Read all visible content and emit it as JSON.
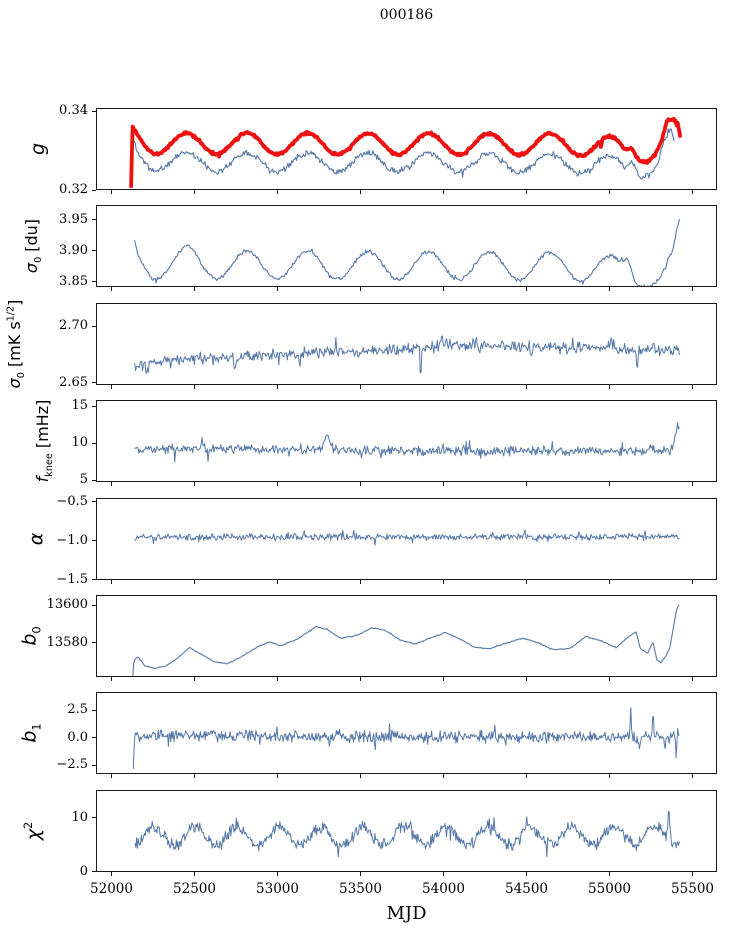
{
  "title": "000186",
  "chart_data": {
    "type": "line",
    "title": "000186",
    "xlabel": "MJD",
    "x_ticks": [
      52000,
      52500,
      53000,
      53500,
      54000,
      54500,
      55000,
      55500
    ],
    "x_tick_labels": [
      "52000",
      "52500",
      "53000",
      "53500",
      "54000",
      "54500",
      "55000",
      "55500"
    ],
    "x_data_range": [
      52120,
      55425
    ],
    "grid": false,
    "legend": "none",
    "colors": {
      "line_blue": "#5578a8",
      "line_red": "#ee1111",
      "axis": "#1a1a1a",
      "background": "#ffffff"
    },
    "panels": [
      {
        "id": "g",
        "label_var": "g",
        "label_unit": "",
        "ylim": [
          0.32,
          0.3408
        ],
        "ytick_vals": [
          0.32,
          0.34
        ],
        "ytick_labels": [
          "0.32",
          "0.34"
        ],
        "series": [
          {
            "id": "g-data-blue",
            "color": "#5578a8",
            "width": 1.1,
            "n": 560,
            "noise": 0.0009,
            "seed": 11,
            "osc": {
              "period": 365,
              "amp": 0.0024,
              "phase": 52359
            },
            "anchors": [
              [
                52138,
                0.3308
              ],
              [
                52152,
                0.329
              ],
              [
                52240,
                0.3272
              ],
              [
                52420,
                0.3272
              ],
              [
                54700,
                0.3268
              ],
              [
                55040,
                0.3262
              ],
              [
                55090,
                0.3255
              ],
              [
                55135,
                0.3288
              ],
              [
                55180,
                0.3258
              ],
              [
                55235,
                0.3252
              ],
              [
                55280,
                0.3258
              ],
              [
                55320,
                0.3295
              ],
              [
                55350,
                0.3318
              ],
              [
                55370,
                0.3328
              ],
              [
                55388,
                0.331
              ]
            ]
          },
          {
            "id": "g-fit-red",
            "color": "#ee1111",
            "width": 3.8,
            "n": 700,
            "noise": 0.00038,
            "seed": 5,
            "osc": {
              "period": 365,
              "amp": 0.0027,
              "phase": 52359
            },
            "spikes": [
              [
                54950,
                -0.0025,
                7
              ]
            ],
            "anchors": [
              [
                52118,
                0.3185
              ],
              [
                52126,
                0.334
              ],
              [
                52170,
                0.3328
              ],
              [
                52260,
                0.3318
              ],
              [
                52420,
                0.3318
              ],
              [
                54760,
                0.3316
              ],
              [
                55040,
                0.3308
              ],
              [
                55090,
                0.33
              ],
              [
                55135,
                0.3322
              ],
              [
                55180,
                0.33
              ],
              [
                55230,
                0.3292
              ],
              [
                55275,
                0.3292
              ],
              [
                55315,
                0.331
              ],
              [
                55345,
                0.335
              ],
              [
                55395,
                0.3352
              ],
              [
                55405,
                0.334
              ],
              [
                55412,
                0.335
              ],
              [
                55425,
                0.332
              ]
            ]
          }
        ]
      },
      {
        "id": "sigma0_du",
        "label_var": "σ_{0}",
        "label_unit": "[du]",
        "ylim": [
          3.8405,
          3.9735
        ],
        "ytick_vals": [
          3.85,
          3.9,
          3.95
        ],
        "ytick_labels": [
          "3.85",
          "3.90",
          "3.95"
        ],
        "series": [
          {
            "id": "sigma0-du",
            "color": "#5578a8",
            "width": 1.1,
            "n": 560,
            "noise": 0.0036,
            "seed": 21,
            "osc": {
              "period": 365,
              "amp": 0.0225,
              "phase": 52359
            },
            "spikes": [
              [
                52470,
                0.01,
                100
              ]
            ],
            "anchors": [
              [
                52140,
                3.903
              ],
              [
                52158,
                3.886
              ],
              [
                52240,
                3.876
              ],
              [
                52420,
                3.877
              ],
              [
                54760,
                3.874
              ],
              [
                55060,
                3.868
              ],
              [
                55110,
                3.892
              ],
              [
                55155,
                3.868
              ],
              [
                55205,
                3.861
              ],
              [
                55255,
                3.852
              ],
              [
                55300,
                3.846
              ],
              [
                55340,
                3.856
              ],
              [
                55380,
                3.878
              ],
              [
                55408,
                3.92
              ],
              [
                55420,
                3.932
              ]
            ]
          }
        ]
      },
      {
        "id": "sigma0_mks",
        "label_var": "σ_{0}",
        "label_unit": "[mK s^{1/2}]",
        "ylim": [
          2.648,
          2.721
        ],
        "ytick_vals": [
          2.65,
          2.7
        ],
        "ytick_labels": [
          "2.65",
          "2.70"
        ],
        "series": [
          {
            "id": "sigma0-mks",
            "color": "#5578a8",
            "width": 1.0,
            "n": 640,
            "noise": 0.0062,
            "seed": 31,
            "spikes": [
              [
                52215,
                -0.009,
                18
              ],
              [
                52745,
                -0.013,
                14
              ],
              [
                53135,
                -0.012,
                14
              ],
              [
                53485,
                -0.009,
                12
              ],
              [
                53862,
                -0.03,
                9
              ],
              [
                54215,
                -0.008,
                10
              ],
              [
                54530,
                -0.01,
                11
              ],
              [
                55165,
                -0.024,
                11
              ],
              [
                55010,
                0.009,
                22
              ],
              [
                53990,
                0.01,
                18
              ]
            ],
            "anchors": [
              [
                52140,
                2.664
              ],
              [
                52350,
                2.671
              ],
              [
                52800,
                2.6735
              ],
              [
                53300,
                2.677
              ],
              [
                53800,
                2.6795
              ],
              [
                54060,
                2.684
              ],
              [
                54420,
                2.682
              ],
              [
                54800,
                2.681
              ],
              [
                55120,
                2.68
              ],
              [
                55420,
                2.679
              ]
            ]
          }
        ]
      },
      {
        "id": "f_knee",
        "label_var": "f_{knee}",
        "label_unit": "[mHz]",
        "ylim": [
          4.73,
          15.8
        ],
        "ytick_vals": [
          5,
          10,
          15
        ],
        "ytick_labels": [
          "5",
          "10",
          "15"
        ],
        "series": [
          {
            "id": "f-knee",
            "color": "#5578a8",
            "width": 1.0,
            "n": 640,
            "noise": 0.8,
            "seed": 41,
            "spikes": [
              [
                53298,
                2.4,
                42
              ],
              [
                52212,
                0.9,
                18
              ],
              [
                55248,
                1.0,
                14
              ],
              [
                52550,
                0.7,
                20
              ]
            ],
            "anchors": [
              [
                52140,
                9.0
              ],
              [
                52420,
                9.2
              ],
              [
                53200,
                9.15
              ],
              [
                53460,
                8.95
              ],
              [
                54400,
                8.95
              ],
              [
                55330,
                8.9
              ],
              [
                55382,
                9.4
              ],
              [
                55398,
                11.2
              ],
              [
                55410,
                12.6
              ],
              [
                55420,
                12.1
              ]
            ]
          }
        ]
      },
      {
        "id": "alpha",
        "label_var": "α",
        "label_unit": "",
        "ylim": [
          -1.5,
          -0.449
        ],
        "ytick_vals": [
          -1.5,
          -1.0,
          -0.5
        ],
        "ytick_labels": [
          "−1.5",
          "−1.0",
          "−0.5"
        ],
        "series": [
          {
            "id": "alpha",
            "color": "#5578a8",
            "width": 1.0,
            "n": 640,
            "noise": 0.052,
            "seed": 51,
            "anchors": [
              [
                52140,
                -0.951
              ],
              [
                55420,
                -0.946
              ]
            ]
          }
        ]
      },
      {
        "id": "b0",
        "label_var": "b_{0}",
        "label_unit": "",
        "ylim": [
          13562,
          13605.3
        ],
        "ytick_vals": [
          13580,
          13600
        ],
        "ytick_labels": [
          "13580",
          "13600"
        ],
        "series": [
          {
            "id": "b0",
            "color": "#5578a8",
            "width": 1.1,
            "n": 600,
            "noise": 0.33,
            "seed": 61,
            "anchors": [
              [
                52128,
                13562.5
              ],
              [
                52135,
                13571
              ],
              [
                52160,
                13572.5
              ],
              [
                52200,
                13568
              ],
              [
                52260,
                13566.5
              ],
              [
                52330,
                13568
              ],
              [
                52400,
                13572
              ],
              [
                52470,
                13577.5
              ],
              [
                52540,
                13574
              ],
              [
                52620,
                13570
              ],
              [
                52700,
                13569
              ],
              [
                52790,
                13573
              ],
              [
                52880,
                13578
              ],
              [
                52950,
                13580.5
              ],
              [
                53020,
                13578.5
              ],
              [
                53120,
                13582
              ],
              [
                53230,
                13588.5
              ],
              [
                53300,
                13587
              ],
              [
                53380,
                13582.5
              ],
              [
                53480,
                13584
              ],
              [
                53570,
                13588
              ],
              [
                53650,
                13586.5
              ],
              [
                53740,
                13581.5
              ],
              [
                53830,
                13579.5
              ],
              [
                53920,
                13582.5
              ],
              [
                54010,
                13585.5
              ],
              [
                54100,
                13582
              ],
              [
                54190,
                13577.5
              ],
              [
                54280,
                13577
              ],
              [
                54380,
                13580
              ],
              [
                54480,
                13582.5
              ],
              [
                54570,
                13580
              ],
              [
                54660,
                13576.5
              ],
              [
                54760,
                13577
              ],
              [
                54860,
                13583.5
              ],
              [
                54950,
                13581
              ],
              [
                55040,
                13577.5
              ],
              [
                55110,
                13583
              ],
              [
                55160,
                13586
              ],
              [
                55185,
                13577
              ],
              [
                55230,
                13574.5
              ],
              [
                55262,
                13580.5
              ],
              [
                55285,
                13571
              ],
              [
                55310,
                13569.5
              ],
              [
                55340,
                13573
              ],
              [
                55365,
                13578
              ],
              [
                55390,
                13591
              ],
              [
                55405,
                13598
              ],
              [
                55418,
                13600
              ]
            ]
          }
        ]
      },
      {
        "id": "b1",
        "label_var": "b_{1}",
        "label_unit": "",
        "ylim": [
          -3.35,
          4.1
        ],
        "ytick_vals": [
          -2.5,
          0.0,
          2.5
        ],
        "ytick_labels": [
          "−2.5",
          "0.0",
          "2.5"
        ],
        "series": [
          {
            "id": "b1",
            "color": "#5578a8",
            "width": 1.0,
            "n": 700,
            "noise": 0.62,
            "seed": 71,
            "spikes": [
              [
                55128,
                3.2,
                10
              ],
              [
                55182,
                -1.5,
                8
              ],
              [
                55262,
                2.5,
                8
              ],
              [
                55332,
                -1.9,
                6
              ],
              [
                55399,
                -3.7,
                6
              ],
              [
                55411,
                1.3,
                5
              ]
            ],
            "anchors": [
              [
                52131,
                -2.8
              ],
              [
                52140,
                0.15
              ],
              [
                54000,
                0.05
              ],
              [
                55420,
                0.0
              ]
            ]
          }
        ]
      },
      {
        "id": "chi2",
        "label_var": "χ^{2}",
        "label_unit": "",
        "ylim": [
          0,
          15.2
        ],
        "ytick_vals": [
          0,
          10
        ],
        "ytick_labels": [
          "0",
          "10"
        ],
        "series": [
          {
            "id": "chi2",
            "color": "#5578a8",
            "width": 1.0,
            "n": 700,
            "noise": 1.35,
            "seed": 81,
            "osc": {
              "period": 252,
              "amp": 1.65,
              "phase": 52190
            },
            "spikes": [
              [
                55357,
                5.8,
                14
              ],
              [
                54640,
                1.5,
                20
              ]
            ],
            "anchors": [
              [
                52142,
                6.6
              ],
              [
                55420,
                6.7
              ]
            ]
          }
        ]
      }
    ]
  }
}
